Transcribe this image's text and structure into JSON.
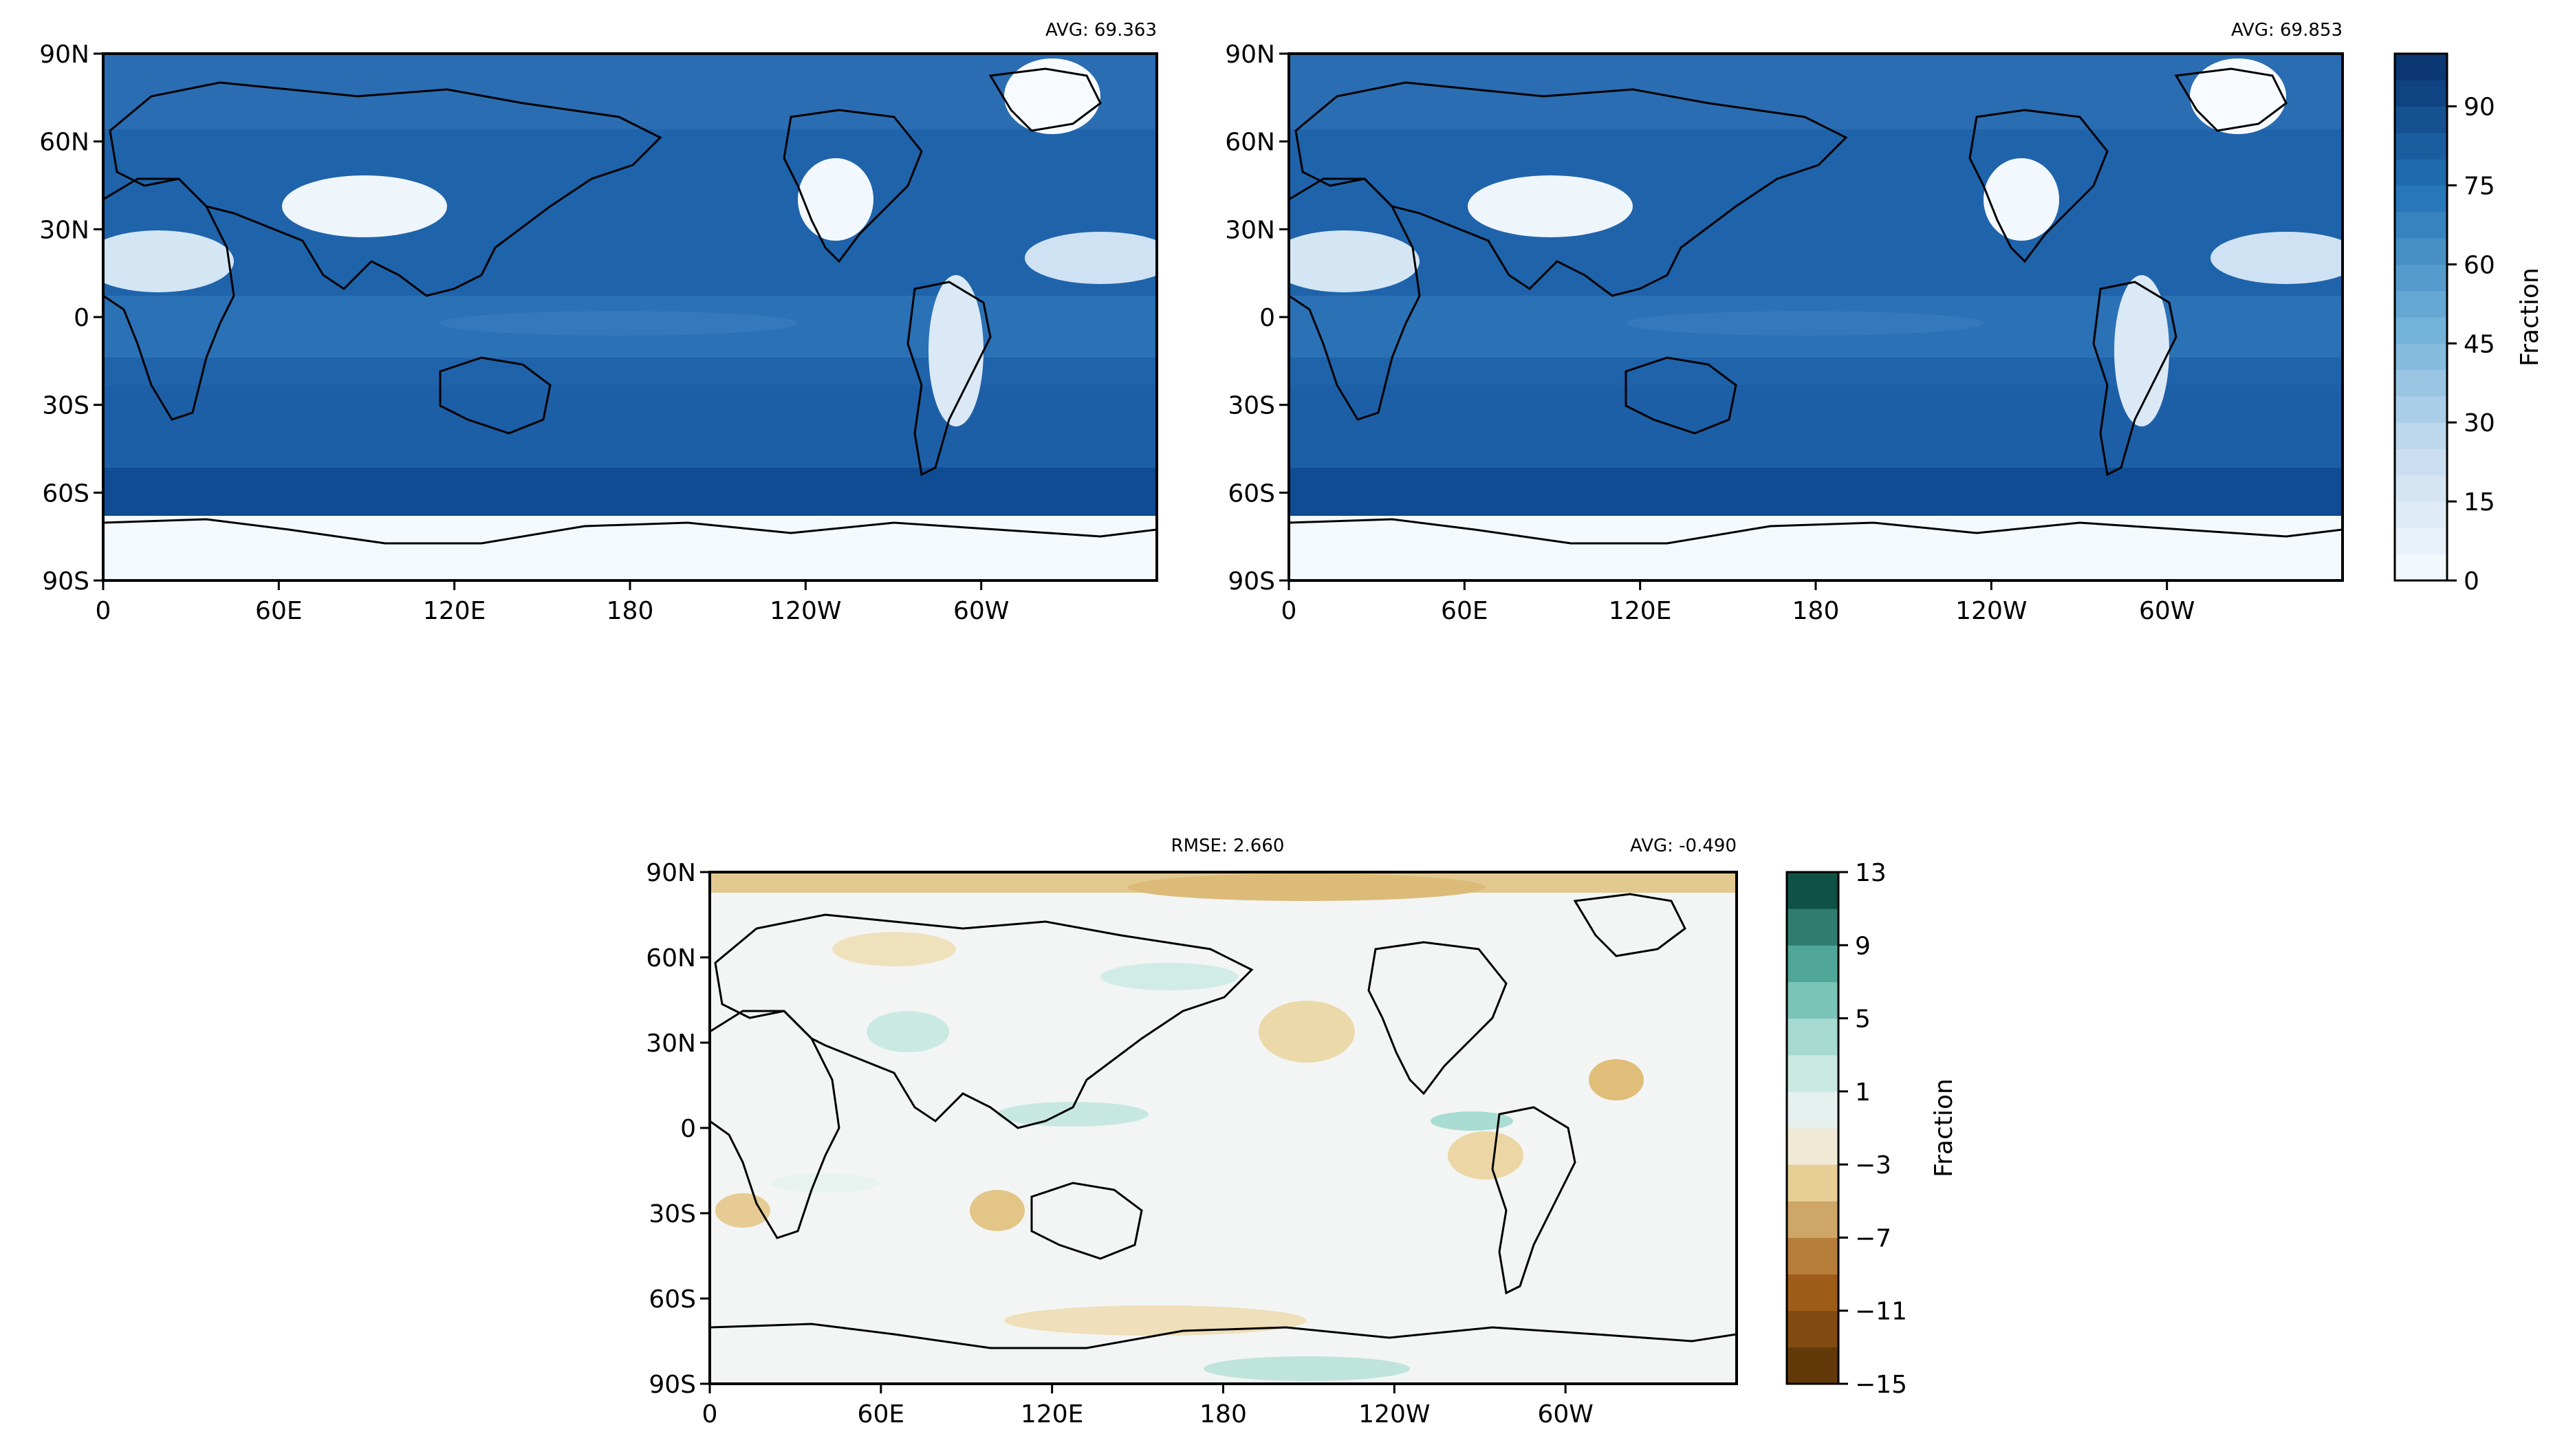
{
  "figure": {
    "colorbar_label": "Fraction"
  },
  "chart_data": [
    {
      "type": "heatmap",
      "panel": "top-left",
      "stats": {
        "avg": "AVG: 69.363"
      },
      "x_ticks": [
        "0",
        "60E",
        "120E",
        "180",
        "120W",
        "60W"
      ],
      "y_ticks": [
        "90N",
        "60N",
        "30N",
        "0",
        "30S",
        "60S",
        "90S"
      ],
      "xlim": [
        0,
        360
      ],
      "ylim": [
        -90,
        90
      ],
      "colormap": "blues",
      "zlim": [
        0,
        100
      ]
    },
    {
      "type": "heatmap",
      "panel": "top-right",
      "stats": {
        "avg": "AVG: 69.853"
      },
      "x_ticks": [
        "0",
        "60E",
        "120E",
        "180",
        "120W",
        "60W"
      ],
      "y_ticks": [
        "90N",
        "60N",
        "30N",
        "0",
        "30S",
        "60S",
        "90S"
      ],
      "xlim": [
        0,
        360
      ],
      "ylim": [
        -90,
        90
      ],
      "colormap": "blues",
      "zlim": [
        0,
        100
      ],
      "colorbar": {
        "label": "Fraction",
        "ticks": [
          "0",
          "15",
          "30",
          "45",
          "60",
          "75",
          "90"
        ],
        "tick_values": [
          0,
          15,
          30,
          45,
          60,
          75,
          90
        ],
        "range": [
          0,
          100
        ],
        "levels": 20
      }
    },
    {
      "type": "heatmap",
      "panel": "bottom",
      "stats": {
        "rmse": "RMSE: 2.660",
        "avg": "AVG: -0.490"
      },
      "x_ticks": [
        "0",
        "60E",
        "120E",
        "180",
        "120W",
        "60W"
      ],
      "y_ticks": [
        "90N",
        "60N",
        "30N",
        "0",
        "30S",
        "60S",
        "90S"
      ],
      "xlim": [
        0,
        360
      ],
      "ylim": [
        -90,
        90
      ],
      "colormap": "brown-bluegreen",
      "zlim": [
        -15,
        13
      ],
      "colorbar": {
        "label": "Fraction",
        "ticks": [
          "13",
          "9",
          "5",
          "1",
          "−3",
          "−7",
          "−11",
          "−15"
        ],
        "tick_values": [
          13,
          9,
          5,
          1,
          -3,
          -7,
          -11,
          -15
        ],
        "range": [
          -15,
          13
        ],
        "levels": 14
      }
    }
  ],
  "colors": {
    "blues_low": "#f7fbff",
    "blues_high": "#08306b",
    "diff_brown": "#543005",
    "diff_green": "#003c30"
  }
}
